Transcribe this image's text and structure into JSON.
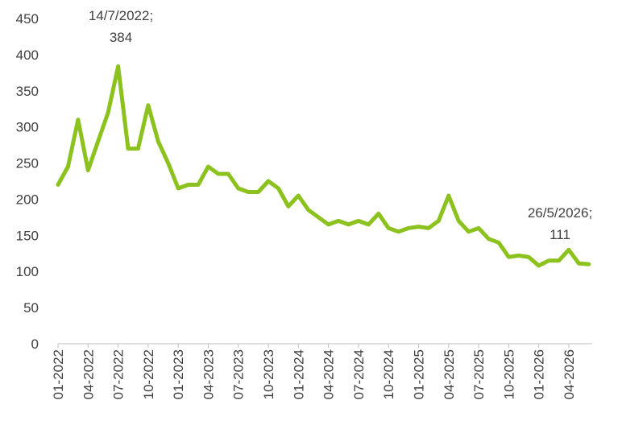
{
  "chart_data": {
    "type": "line",
    "categories": [
      "01-2022",
      null,
      null,
      "04-2022",
      null,
      null,
      "07-2022",
      null,
      null,
      "10-2022",
      null,
      null,
      "01-2023",
      null,
      null,
      "04-2023",
      null,
      null,
      "07-2023",
      null,
      null,
      "10-2023",
      null,
      null,
      "01-2024",
      null,
      null,
      "04-2024",
      null,
      null,
      "07-2024",
      null,
      null,
      "10-2024",
      null,
      null,
      "01-2025",
      null,
      null,
      "04-2025",
      null,
      null,
      "07-2025",
      null,
      null,
      "10-2025",
      null,
      null,
      "01-2026",
      null,
      null,
      "04-2026",
      null,
      null
    ],
    "series": [
      {
        "color": "#8cc21e",
        "values": [
          220,
          245,
          310,
          240,
          280,
          320,
          384,
          270,
          270,
          330,
          280,
          250,
          215,
          220,
          220,
          245,
          235,
          235,
          215,
          210,
          210,
          225,
          215,
          190,
          205,
          185,
          175,
          165,
          170,
          165,
          170,
          165,
          180,
          160,
          155,
          160,
          162,
          160,
          170,
          205,
          170,
          155,
          160,
          145,
          140,
          120,
          122,
          120,
          108,
          115,
          115,
          130,
          111,
          110
        ]
      }
    ],
    "ylim": [
      0,
      450
    ],
    "yticks": [
      0,
      50,
      100,
      150,
      200,
      250,
      300,
      350,
      400,
      450
    ],
    "annotations": [
      {
        "lines": [
          "14/7/2022;",
          "384"
        ]
      },
      {
        "lines": [
          "26/5/2026;",
          "111"
        ]
      }
    ]
  }
}
